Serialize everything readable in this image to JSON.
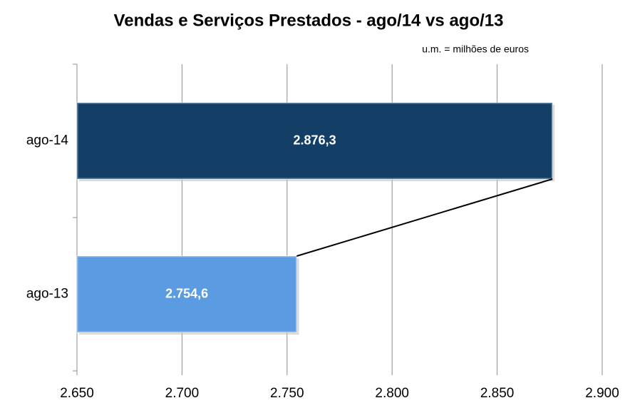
{
  "chart_data": {
    "type": "barh",
    "title": "Vendas e Serviços Prestados - ago/14 vs ago/13",
    "subtitle": "u.m. = milhões de euros",
    "categories": [
      "ago-14",
      "ago-13"
    ],
    "values": [
      2876.3,
      2754.6
    ],
    "value_labels": [
      "2.876,3",
      "2.754,6"
    ],
    "colors": [
      "#133f66",
      "#5a9be2"
    ],
    "xlim": [
      2650,
      2900
    ],
    "xticks": [
      {
        "value": 2650,
        "label": "2.650"
      },
      {
        "value": 2700,
        "label": "2.700"
      },
      {
        "value": 2750,
        "label": "2.750"
      },
      {
        "value": 2800,
        "label": "2.800"
      },
      {
        "value": 2850,
        "label": "2.850"
      },
      {
        "value": 2900,
        "label": "2.900"
      }
    ],
    "grid": true
  }
}
